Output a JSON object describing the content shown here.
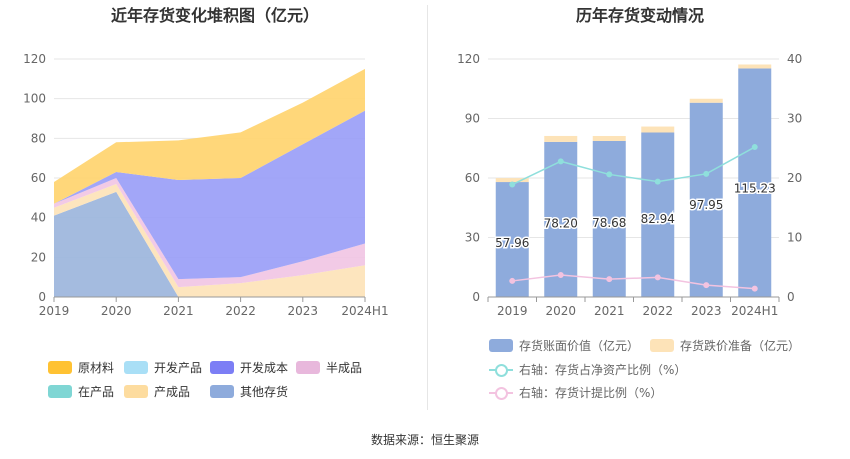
{
  "chart_data": [
    {
      "type": "area",
      "title": "近年存货变化堆积图（亿元）",
      "stacked": true,
      "categories": [
        "2019",
        "2020",
        "2021",
        "2022",
        "2023",
        "2024H1"
      ],
      "ylim": [
        0,
        120
      ],
      "yticks": [
        0,
        20,
        40,
        60,
        80,
        100,
        120
      ],
      "grid": true,
      "legend_position": "bottom",
      "series": [
        {
          "name": "其他存货",
          "color": "#9cb5dc",
          "values": [
            41,
            53,
            0,
            0,
            0,
            0
          ]
        },
        {
          "name": "产成品",
          "color": "#fde3b8",
          "values": [
            4,
            4,
            5,
            7,
            11,
            16
          ]
        },
        {
          "name": "在产品",
          "color": "#7fd6d4",
          "values": [
            0,
            0,
            0,
            0,
            0,
            0
          ]
        },
        {
          "name": "半成品",
          "color": "#f1c6e4",
          "values": [
            2,
            3,
            4,
            3,
            7,
            11
          ]
        },
        {
          "name": "开发成本",
          "color": "#9a9ef7",
          "values": [
            0,
            3,
            50,
            50,
            59,
            67
          ]
        },
        {
          "name": "开发产品",
          "color": "#b7e2f8",
          "values": [
            0,
            0,
            0,
            0,
            0,
            0
          ]
        },
        {
          "name": "原材料",
          "color": "#ffd46f",
          "values": [
            11,
            15,
            20,
            23,
            21,
            21
          ]
        }
      ],
      "legend": [
        {
          "name": "原材料",
          "color": "#ffc233"
        },
        {
          "name": "开发产品",
          "color": "#a9dff6"
        },
        {
          "name": "开发成本",
          "color": "#7c7ef5"
        },
        {
          "name": "半成品",
          "color": "#e8b8dc"
        },
        {
          "name": "在产品",
          "color": "#7fd6d4"
        },
        {
          "name": "产成品",
          "color": "#fddc9f"
        },
        {
          "name": "其他存货",
          "color": "#8eabdc"
        }
      ]
    },
    {
      "type": "bar",
      "title": "历年存货变动情况",
      "stacked": true,
      "categories": [
        "2019",
        "2020",
        "2021",
        "2022",
        "2023",
        "2024H1"
      ],
      "ylim": [
        0,
        120
      ],
      "yticks": [
        0,
        30,
        60,
        90,
        120
      ],
      "y2lim": [
        0,
        40
      ],
      "y2ticks": [
        0,
        10,
        20,
        30,
        40
      ],
      "grid": true,
      "legend_position": "bottom",
      "series": [
        {
          "name": "存货账面价值（亿元）",
          "color": "#8eabdc",
          "values": [
            57.96,
            78.2,
            78.68,
            82.94,
            97.95,
            115.23
          ],
          "labels": [
            "57.96",
            "78.20",
            "78.68",
            "82.94",
            "97.95",
            "115.23"
          ]
        },
        {
          "name": "存货跌价准备（亿元）",
          "color": "#fde3b8",
          "values": [
            2.0,
            3.0,
            2.5,
            3.0,
            2.0,
            2.0
          ]
        }
      ],
      "line_series": [
        {
          "name": "右轴：存货占净资产比例（%）",
          "color": "#8fdfdc",
          "axis": "right",
          "values": [
            18.9,
            22.8,
            20.6,
            19.4,
            20.7,
            25.2
          ]
        },
        {
          "name": "右轴：存货计提比例（%）",
          "color": "#f3c3e0",
          "axis": "right",
          "values": [
            2.7,
            3.7,
            3.0,
            3.3,
            2.0,
            1.4
          ]
        }
      ]
    }
  ],
  "source": "数据来源：恒生聚源"
}
